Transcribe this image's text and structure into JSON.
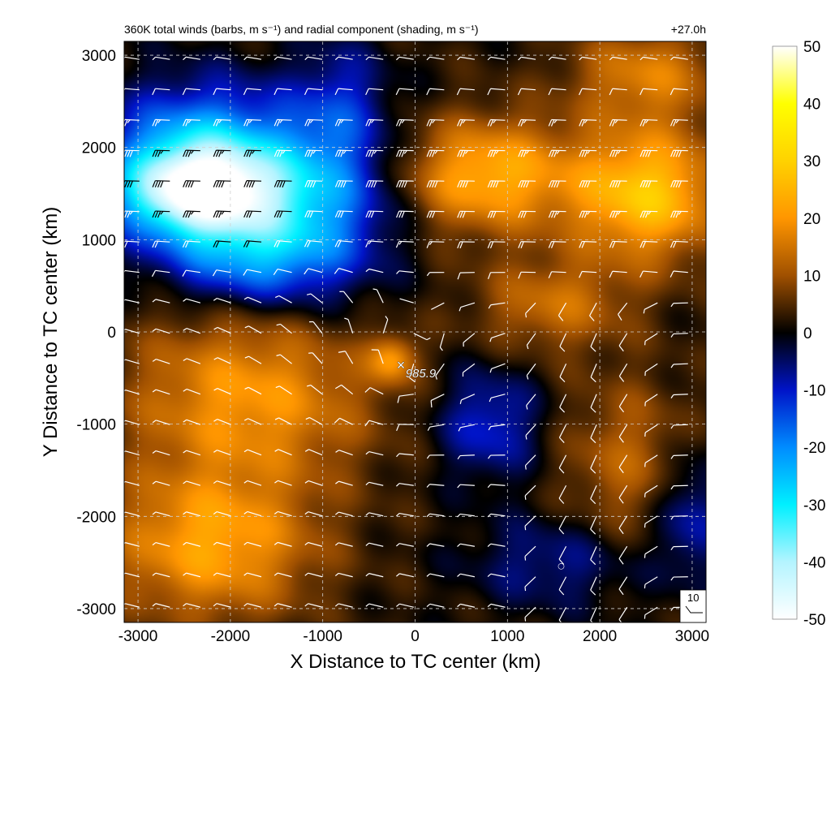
{
  "chart_data": {
    "type": "heatmap",
    "title": "360K total winds (barbs, m s⁻¹) and radial component (shading, m s⁻¹)",
    "forecast_time": "+27.0h",
    "xlabel": "X Distance to TC center (km)",
    "ylabel": "Y Distance to TC center (km)",
    "xlim": [
      -3150,
      3150
    ],
    "ylim": [
      -3150,
      3150
    ],
    "xticks": [
      -3000,
      -2000,
      -1000,
      0,
      1000,
      2000,
      3000
    ],
    "yticks": [
      -3000,
      -2000,
      -1000,
      0,
      1000,
      2000,
      3000
    ],
    "grid": true,
    "colorbar": {
      "range": [
        -50,
        50
      ],
      "ticks": [
        50,
        40,
        30,
        20,
        10,
        0,
        -10,
        -20,
        -30,
        -40,
        -50
      ],
      "stops": [
        {
          "v": -50,
          "c": "#ffffff"
        },
        {
          "v": -40,
          "c": "#b4f4ff"
        },
        {
          "v": -30,
          "c": "#00f0ff"
        },
        {
          "v": -20,
          "c": "#008cff"
        },
        {
          "v": -10,
          "c": "#0014c8"
        },
        {
          "v": 0,
          "c": "#000000"
        },
        {
          "v": 10,
          "c": "#a05000"
        },
        {
          "v": 20,
          "c": "#ff9600"
        },
        {
          "v": 30,
          "c": "#ffd200"
        },
        {
          "v": 40,
          "c": "#ffff00"
        },
        {
          "v": 50,
          "c": "#ffffff"
        }
      ]
    },
    "radial_wind_features": [
      {
        "x": -2300,
        "y": 1500,
        "value": -45,
        "sx": 900,
        "sy": 500
      },
      {
        "x": -2300,
        "y": 2000,
        "value": -25,
        "sx": 1000,
        "sy": 700
      },
      {
        "x": -1000,
        "y": 1400,
        "value": -18,
        "sx": 800,
        "sy": 900
      },
      {
        "x": -1800,
        "y": 800,
        "value": -20,
        "sx": 900,
        "sy": 500
      },
      {
        "x": -800,
        "y": 2500,
        "value": -10,
        "sx": 500,
        "sy": 700
      },
      {
        "x": 800,
        "y": 1700,
        "value": 22,
        "sx": 900,
        "sy": 600
      },
      {
        "x": 2500,
        "y": 1500,
        "value": 26,
        "sx": 800,
        "sy": 700
      },
      {
        "x": 2500,
        "y": 2800,
        "value": 14,
        "sx": 800,
        "sy": 500
      },
      {
        "x": 1500,
        "y": 300,
        "value": 12,
        "sx": 800,
        "sy": 500
      },
      {
        "x": 800,
        "y": -1000,
        "value": -13,
        "sx": 550,
        "sy": 600
      },
      {
        "x": 1500,
        "y": -2500,
        "value": -9,
        "sx": 900,
        "sy": 500
      },
      {
        "x": 3000,
        "y": -2000,
        "value": -12,
        "sx": 400,
        "sy": 700
      },
      {
        "x": -1800,
        "y": -700,
        "value": 18,
        "sx": 1300,
        "sy": 900
      },
      {
        "x": -2200,
        "y": -2300,
        "value": 20,
        "sx": 1100,
        "sy": 800
      },
      {
        "x": 2300,
        "y": -1400,
        "value": 10,
        "sx": 700,
        "sy": 900
      },
      {
        "x": -250,
        "y": -300,
        "value": 16,
        "sx": 250,
        "sy": 250
      }
    ],
    "wind_barb_grid": {
      "spacing_km": 330,
      "reference_speed": 10,
      "reference_label": "10"
    },
    "tc_center": {
      "x": -130,
      "y": -360,
      "label": "985.9",
      "marker": "×"
    },
    "secondary_marker": {
      "x": 1570,
      "y": -2530,
      "marker": "○"
    }
  }
}
